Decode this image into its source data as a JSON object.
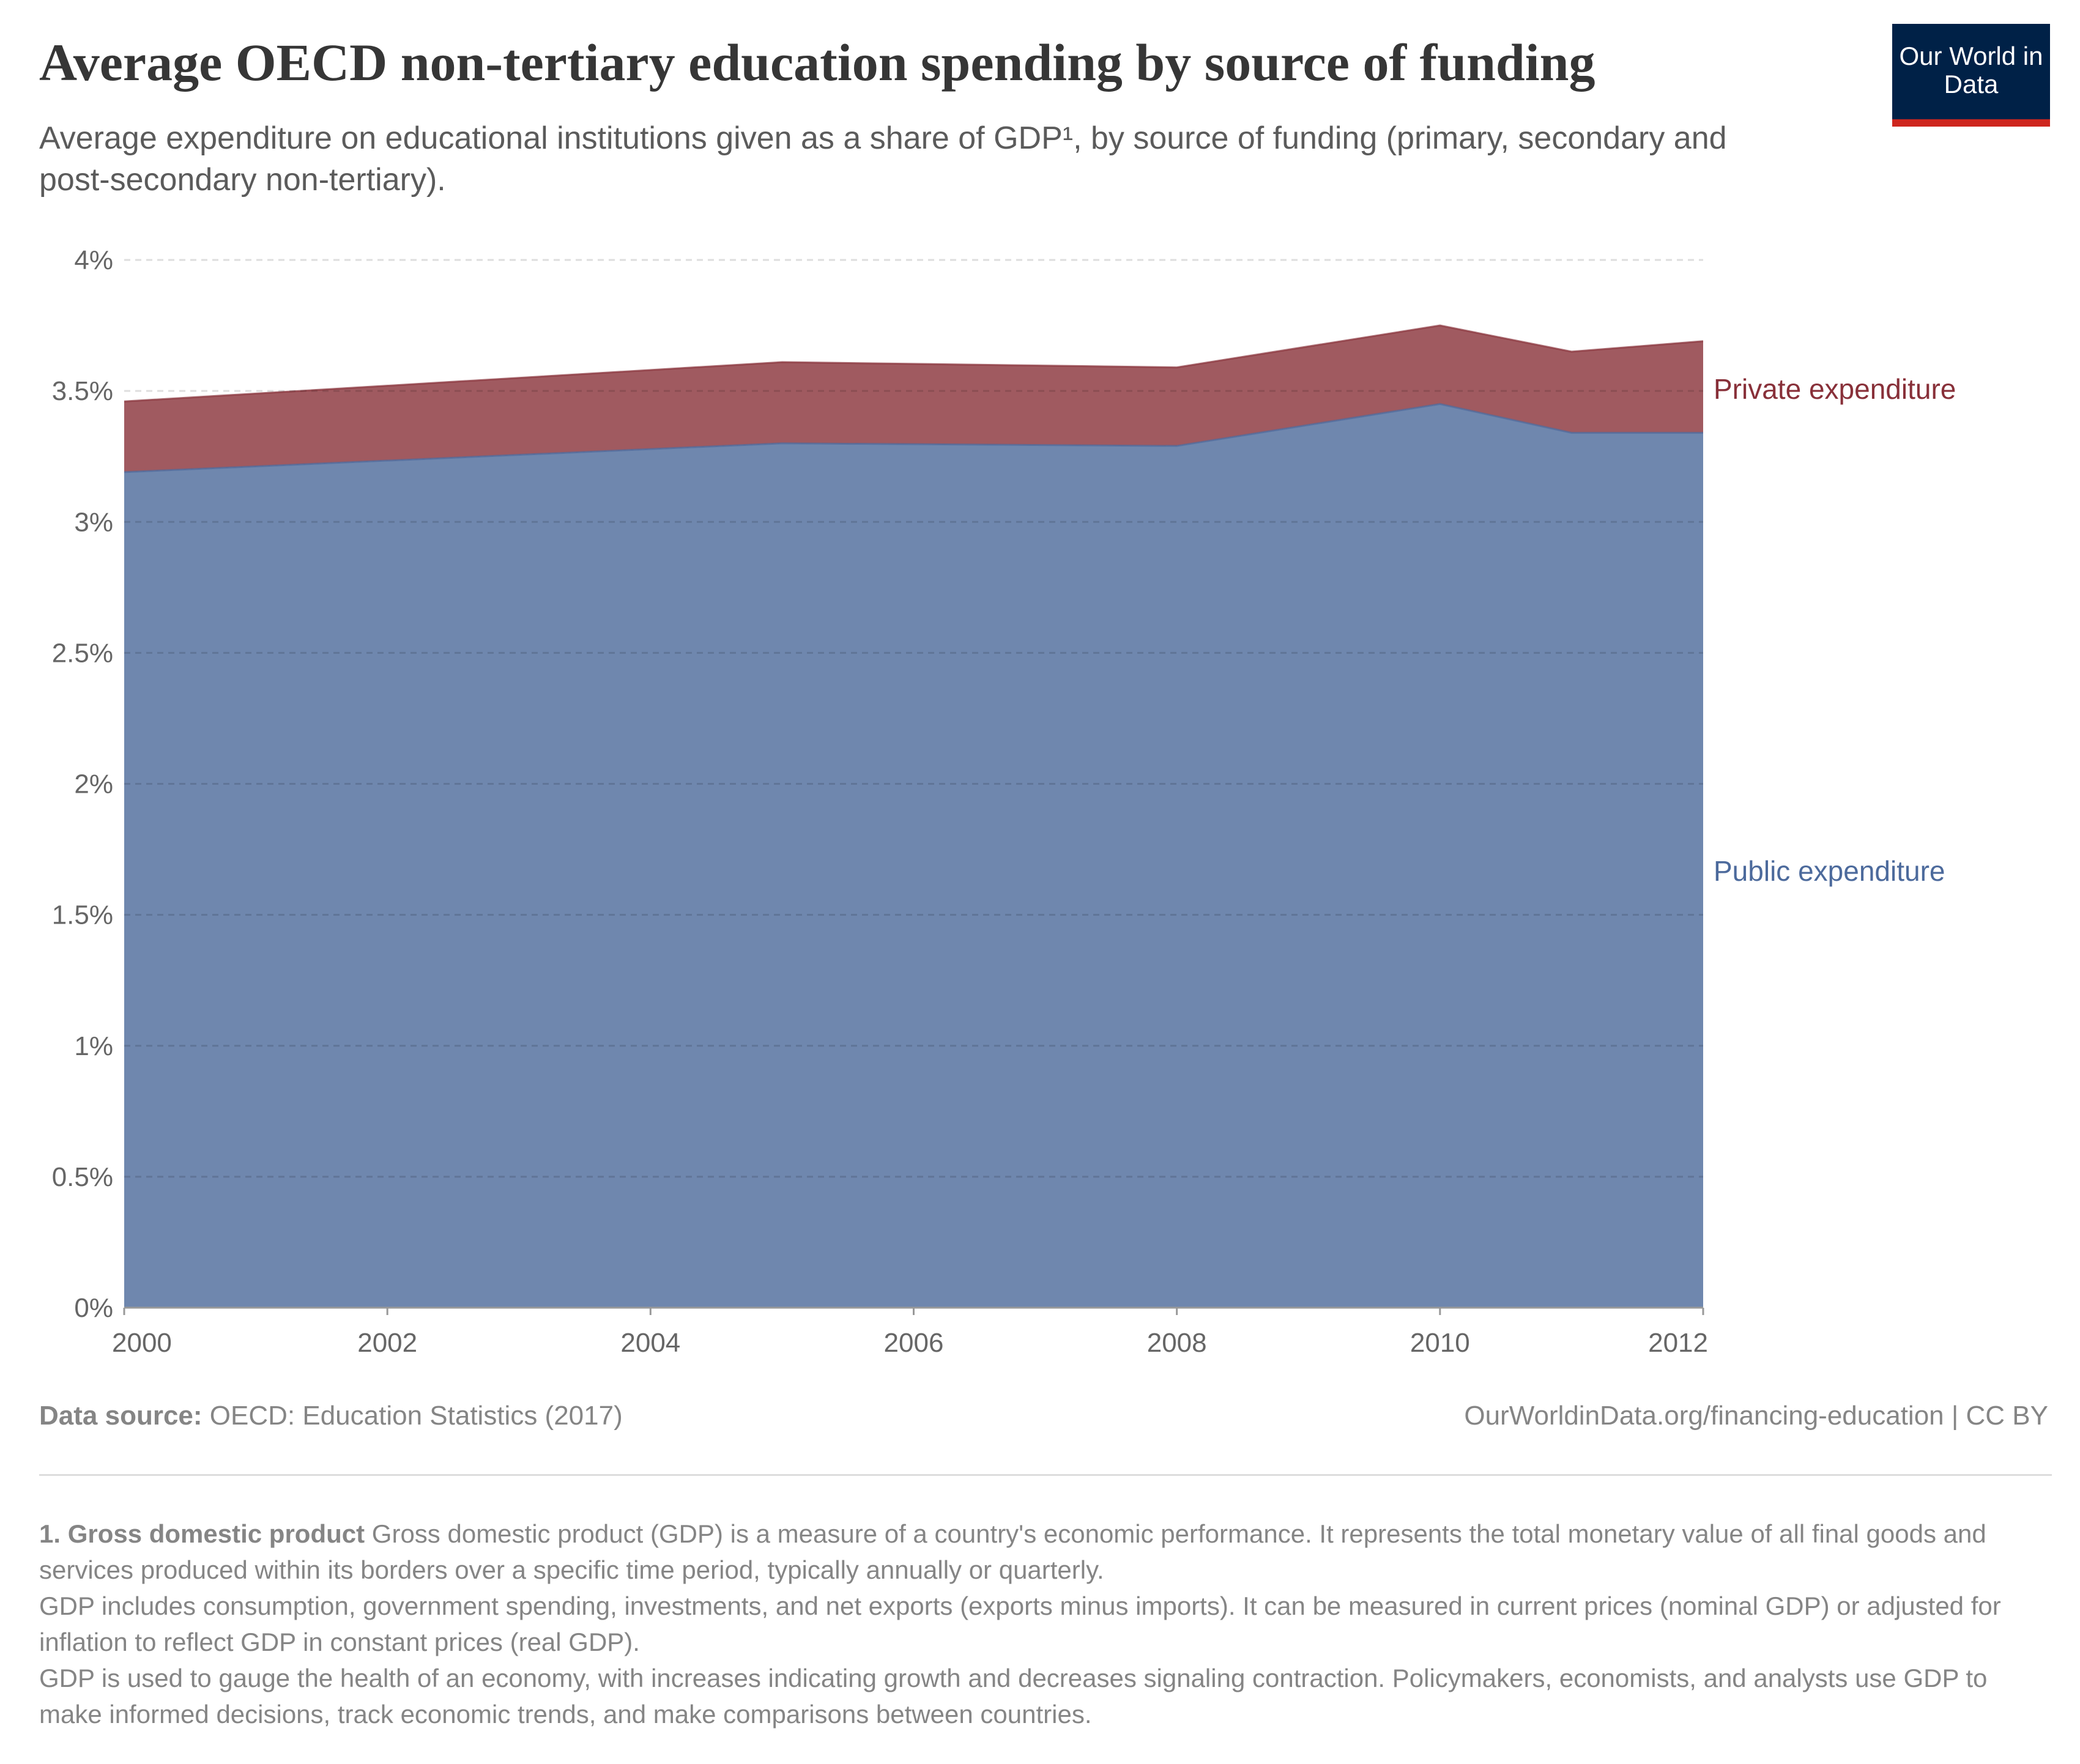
{
  "header": {
    "title": "Average OECD non-tertiary education spending by source of funding",
    "subtitle": "Average expenditure on educational institutions given as a share of GDP¹, by source of funding (primary, secondary and post-secondary non-tertiary).",
    "logo": "Our World in Data"
  },
  "chart_data": {
    "type": "area",
    "stacked": true,
    "x": [
      2000,
      2005,
      2008,
      2010,
      2011,
      2012
    ],
    "series": [
      {
        "name": "Public expenditure",
        "values": [
          3.19,
          3.3,
          3.29,
          3.45,
          3.34,
          3.34
        ],
        "color": "#6f87ae"
      },
      {
        "name": "Private expenditure",
        "values": [
          0.27,
          0.31,
          0.3,
          0.3,
          0.31,
          0.35
        ],
        "color": "#a05a60"
      }
    ],
    "ylim": [
      0,
      4
    ],
    "xlim": [
      2000,
      2012
    ],
    "yticks": [
      "0%",
      "0.5%",
      "1%",
      "1.5%",
      "2%",
      "2.5%",
      "3%",
      "3.5%",
      "4%"
    ],
    "xticks": [
      "2000",
      "2002",
      "2004",
      "2006",
      "2008",
      "2010",
      "2012"
    ],
    "grid": "horizontal dashed",
    "legend": "inline-right",
    "label_colors": {
      "Public expenditure": "#4c6a9c",
      "Private expenditure": "#883039"
    }
  },
  "footer": {
    "source_label": "Data source:",
    "source": " OECD: Education Statistics (2017)",
    "credit": "OurWorldinData.org/financing-education | CC BY",
    "footnote_title": "1. Gross domestic product",
    "footnote_lines": [
      " Gross domestic product (GDP) is a measure of a country's economic performance. It represents the total monetary value of all final goods and services produced within its borders over a specific time period, typically annually or quarterly.",
      "GDP includes consumption, government spending, investments, and net exports (exports minus imports). It can be measured in current prices (nominal GDP) or adjusted for inflation to reflect GDP in constant prices (real GDP).",
      "GDP is used to gauge the health of an economy, with increases indicating growth and decreases signaling contraction. Policymakers, economists, and analysts use GDP to make informed decisions, track economic trends, and make comparisons between countries."
    ]
  }
}
